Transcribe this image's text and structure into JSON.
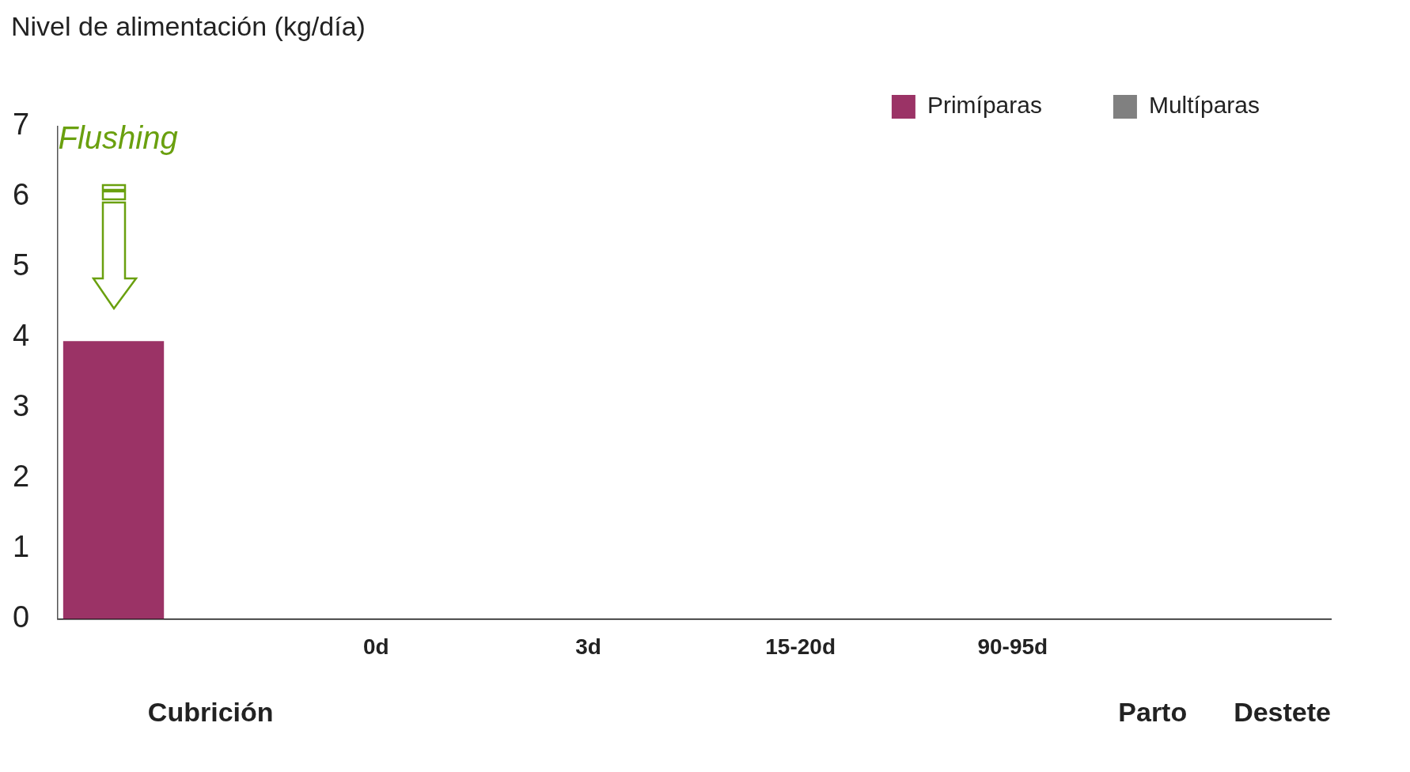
{
  "chart_data": {
    "type": "bar",
    "ylabel": "Nivel de alimentación (kg/día)",
    "categories": [
      null,
      "0d",
      "3d",
      "15-20d",
      "90-95d",
      null
    ],
    "series": [
      {
        "name": "Primíparas",
        "color": "#9b3366",
        "values": [
          3.95,
          null,
          null,
          null,
          null,
          null
        ]
      },
      {
        "name": "Multíparas",
        "color": "#808080",
        "values": [
          null,
          null,
          null,
          null,
          null,
          null
        ]
      }
    ],
    "ylim": [
      0,
      7
    ],
    "yticks": [
      0,
      1,
      2,
      3,
      4,
      5,
      6,
      7
    ],
    "grid": false,
    "legend": "top right",
    "annotations": [
      "Flushing",
      "Cubrición",
      "Parto",
      "Destete"
    ]
  }
}
